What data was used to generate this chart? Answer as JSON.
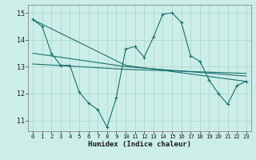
{
  "xlabel": "Humidex (Indice chaleur)",
  "bg_color": "#cceee8",
  "grid_color": "#b0d8d0",
  "line_color": "#1a7070",
  "xlim": [
    -0.5,
    23.5
  ],
  "ylim": [
    10.6,
    15.3
  ],
  "xticks": [
    0,
    1,
    2,
    3,
    4,
    5,
    6,
    7,
    8,
    9,
    10,
    11,
    12,
    13,
    14,
    15,
    16,
    17,
    18,
    19,
    20,
    21,
    22,
    23
  ],
  "yticks": [
    11,
    12,
    13,
    14,
    15
  ],
  "line1_x": [
    0,
    1,
    2,
    3,
    4,
    5,
    6,
    7,
    8,
    9,
    10,
    11,
    12,
    13,
    14,
    15,
    16,
    17,
    18,
    19,
    20,
    21,
    22,
    23
  ],
  "line1_y": [
    14.75,
    14.5,
    13.5,
    13.05,
    13.05,
    12.05,
    11.65,
    11.4,
    10.75,
    11.85,
    13.65,
    13.75,
    13.35,
    14.1,
    14.95,
    15.0,
    14.65,
    13.4,
    13.2,
    12.5,
    12.0,
    11.6,
    12.3,
    12.45
  ],
  "line2_x": [
    0,
    10,
    23
  ],
  "line2_y": [
    14.75,
    13.05,
    12.45
  ],
  "line3_x": [
    0,
    10,
    23
  ],
  "line3_y": [
    13.5,
    13.0,
    12.65
  ],
  "line4_x": [
    0,
    10,
    23
  ],
  "line4_y": [
    13.1,
    12.9,
    12.75
  ]
}
